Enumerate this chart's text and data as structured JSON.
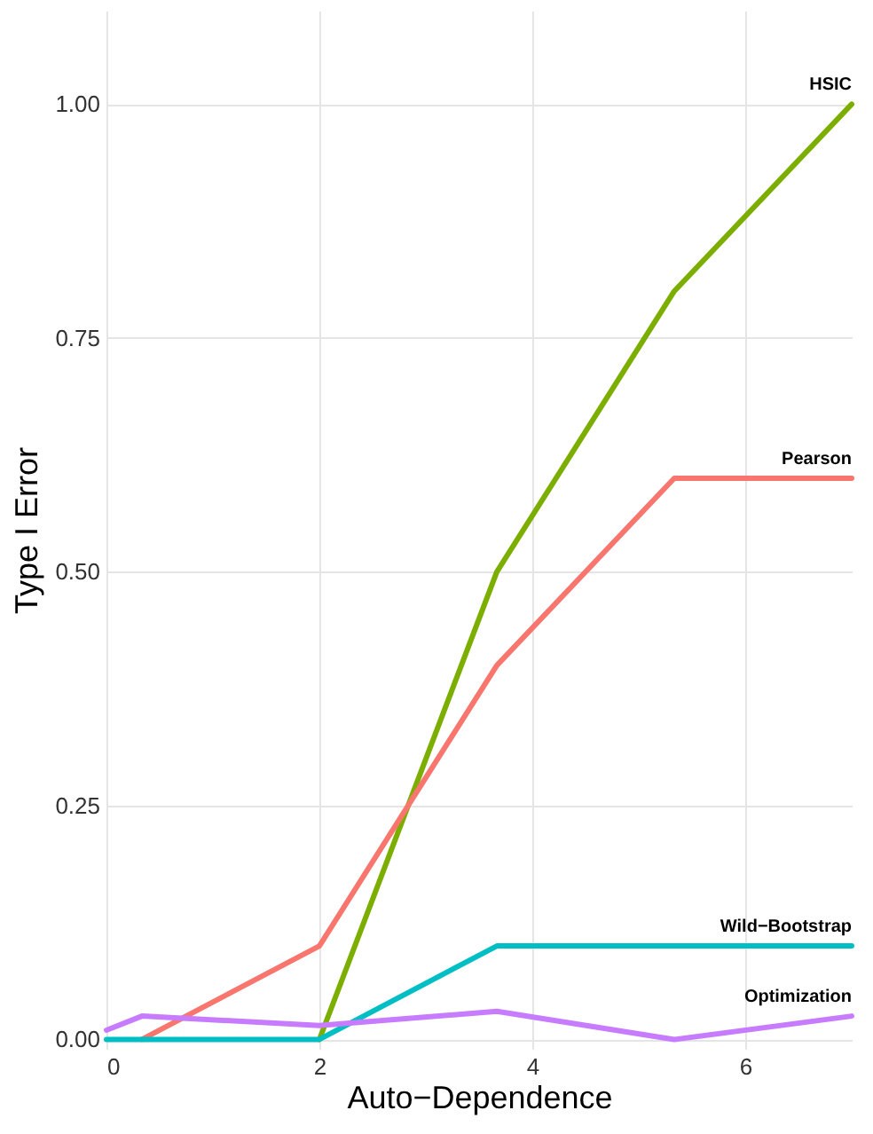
{
  "chart_data": {
    "type": "line",
    "xlabel": "Auto−Dependence",
    "ylabel": "Type I Error",
    "xlim": [
      0,
      7
    ],
    "ylim": [
      -0.01,
      1.1
    ],
    "xticks": [
      0,
      2,
      4,
      6
    ],
    "yticks": [
      {
        "value": 0,
        "label": "0.00"
      },
      {
        "value": 0.25,
        "label": "0.25"
      },
      {
        "value": 0.5,
        "label": "0.50"
      },
      {
        "value": 0.75,
        "label": "0.75"
      },
      {
        "value": 1,
        "label": "1.00"
      }
    ],
    "grid": true,
    "legend": false,
    "line_style": "solid",
    "marker": "none",
    "series": [
      {
        "name": "HSIC",
        "color": "#7cae00",
        "x": [
          2,
          3.667,
          5.333,
          7
        ],
        "values": [
          0,
          0.5,
          0.8,
          1.0
        ]
      },
      {
        "name": "Pearson",
        "color": "#f8766d",
        "x": [
          0.333,
          2,
          3.667,
          5.333,
          7
        ],
        "values": [
          0,
          0.1,
          0.4,
          0.6,
          0.6
        ]
      },
      {
        "name": "Wild−Bootstrap",
        "color": "#00bfc4",
        "x": [
          0,
          2,
          3.667,
          5.333,
          7
        ],
        "values": [
          0,
          0,
          0.1,
          0.1,
          0.1
        ]
      },
      {
        "name": "Optimization",
        "color": "#c77cff",
        "x": [
          0,
          0.333,
          2,
          3.667,
          5.333,
          7
        ],
        "values": [
          0.01,
          0.025,
          0.015,
          0.03,
          0,
          0.025
        ]
      }
    ]
  }
}
